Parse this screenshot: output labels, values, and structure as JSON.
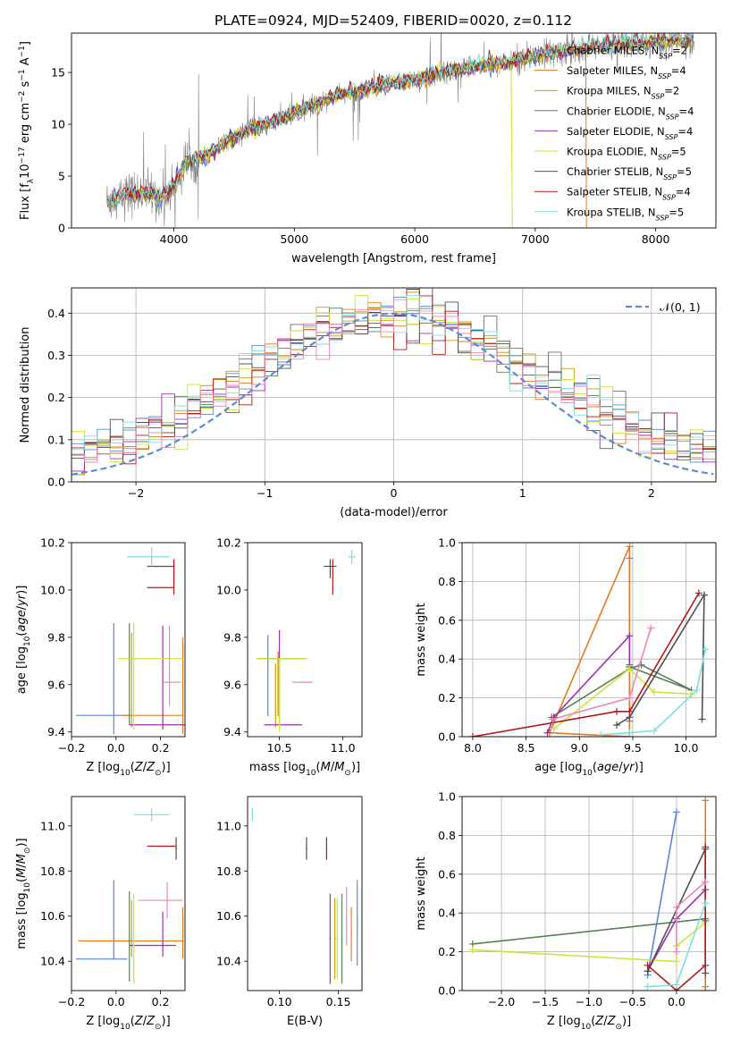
{
  "figure_title": "PLATE=0924, MJD=52409, FIBERID=0020, z=0.112",
  "colors": {
    "Chabrier MILES": "#5b86d6",
    "Salpeter MILES": "#e07b22",
    "Kroupa MILES": "#c8a000",
    "Chabrier ELODIE": "#5a7f5a",
    "Salpeter ELODIE": "#9b30b0",
    "Kroupa ELODIE": "#cde23a",
    "Chabrier STELIB": "#505050",
    "Salpeter STELIB": "#b21818",
    "Kroupa STELIB": "#7fdede",
    "data": "#808080",
    "pink": "#e887b8",
    "normal_curve": "#5b8bd6",
    "grid": "#b0b0b0"
  },
  "chart_data": [
    {
      "id": "spectrum",
      "type": "line",
      "xlabel": "wavelength [Angstrom, rest frame]",
      "ylabel": "Flux [f_λ10^-17 erg cm^-2 s^-1 A^-1]",
      "xlim": [
        3150,
        8500
      ],
      "ylim": [
        0,
        18.8
      ],
      "xticks": [
        4000,
        5000,
        6000,
        7000,
        8000
      ],
      "yticks": [
        0,
        5,
        10,
        15
      ],
      "grid": false,
      "legend_position": "right",
      "legend": [
        {
          "label": "Chabrier MILES, N_SSP=2",
          "color": "#5b86d6"
        },
        {
          "label": "Salpeter MILES, N_SSP=4",
          "color": "#e07b22"
        },
        {
          "label": "Kroupa MILES, N_SSP=2",
          "color": "#c8a000"
        },
        {
          "label": "Chabrier ELODIE, N_SSP=4",
          "color": "#5a7f5a"
        },
        {
          "label": "Salpeter ELODIE, N_SSP=4",
          "color": "#9b30b0"
        },
        {
          "label": "Kroupa ELODIE, N_SSP=5",
          "color": "#cde23a"
        },
        {
          "label": "Chabrier STELIB, N_SSP=5",
          "color": "#505050"
        },
        {
          "label": "Salpeter STELIB, N_SSP=4",
          "color": "#b21818"
        },
        {
          "label": "Kroupa STELIB, N_SSP=5",
          "color": "#7fdede"
        }
      ],
      "continuum_x": [
        3450,
        3600,
        3750,
        3900,
        4000,
        4100,
        4300,
        4500,
        4700,
        4900,
        5100,
        5300,
        5500,
        5700,
        5900,
        6100,
        6300,
        6500,
        6700,
        6900,
        7100,
        7300,
        7500,
        7700,
        7900,
        8100,
        8300
      ],
      "continuum_y": [
        2.6,
        3.2,
        3.5,
        2.9,
        4.0,
        6.3,
        7.2,
        8.8,
        9.8,
        10.6,
        11.6,
        12.6,
        13.1,
        13.7,
        14.2,
        14.5,
        15.2,
        15.6,
        15.9,
        16.3,
        16.8,
        17.2,
        17.5,
        17.7,
        17.8,
        18.0,
        18.1
      ]
    },
    {
      "id": "residuals",
      "type": "histogram",
      "xlabel": "(data-model)/error",
      "ylabel": "Normed distribution",
      "xlim": [
        -2.5,
        2.5
      ],
      "ylim": [
        0,
        0.46
      ],
      "xticks": [
        -2,
        -1,
        0,
        1,
        2
      ],
      "yticks": [
        0.0,
        0.1,
        0.2,
        0.3,
        0.4
      ],
      "grid": true,
      "legend_position": "top-right",
      "normal_curve_label": "𝒩(0, 1)",
      "bin_width": 0.1
    },
    {
      "id": "age-vs-Z",
      "type": "errorbar",
      "xlabel": "Z [log10(Z/Z⊙)]",
      "ylabel": "age  [log10(age/yr)]",
      "xlim": [
        -0.2,
        0.31
      ],
      "ylim": [
        9.38,
        10.2
      ],
      "xticks": [
        -0.2,
        0.0,
        0.2
      ],
      "yticks": [
        9.4,
        9.6,
        9.8,
        10.0,
        10.2
      ],
      "points": [
        {
          "model": "Chabrier MILES",
          "x": -0.01,
          "xerr": [
            0.17,
            0.07
          ],
          "y": 9.47,
          "yerr": [
            0.08,
            0.39
          ]
        },
        {
          "model": "Salpeter MILES",
          "x": 0.3,
          "xerr": [
            0.28,
            0.0
          ],
          "y": 9.47,
          "yerr": [
            0.08,
            0.33
          ]
        },
        {
          "model": "Kroupa MILES",
          "x": 0.07,
          "xerr": [
            0.0,
            0.0
          ],
          "y": 9.47,
          "yerr": [
            0.05,
            0.35
          ]
        },
        {
          "model": "Chabrier ELODIE",
          "x": 0.06,
          "xerr": [
            0.0,
            0.0
          ],
          "y": 9.71,
          "yerr": [
            0.28,
            0.15
          ]
        },
        {
          "model": "Salpeter ELODIE",
          "x": 0.21,
          "xerr": [
            0.15,
            0.1
          ],
          "y": 9.43,
          "yerr": [
            0.02,
            0.42
          ]
        },
        {
          "model": "Kroupa ELODIE",
          "x": 0.08,
          "xerr": [
            0.07,
            0.22
          ],
          "y": 9.71,
          "yerr": [
            0.3,
            0.15
          ]
        },
        {
          "model": "Chabrier STELIB",
          "x": 0.26,
          "xerr": [
            0.12,
            0.0
          ],
          "y": 10.1,
          "yerr": [
            0.04,
            0.03
          ]
        },
        {
          "model": "Salpeter STELIB",
          "x": 0.26,
          "xerr": [
            0.12,
            0.0
          ],
          "y": 10.01,
          "yerr": [
            0.03,
            0.12
          ]
        },
        {
          "model": "Kroupa STELIB",
          "x": 0.16,
          "xerr": [
            0.11,
            0.08
          ],
          "y": 10.14,
          "yerr": [
            0.04,
            0.04
          ]
        },
        {
          "model": "pink",
          "x": 0.24,
          "xerr": [
            0.03,
            0.05
          ],
          "y": 9.61,
          "yerr": [
            0.1,
            0.24
          ]
        }
      ]
    },
    {
      "id": "age-vs-mass",
      "type": "errorbar",
      "xlabel": "mass [log10(M/M⊙)]",
      "ylabel": "",
      "xlim": [
        10.25,
        11.15
      ],
      "ylim": [
        9.38,
        10.2
      ],
      "xticks": [
        10.5,
        11.0
      ],
      "yticks": [
        9.4,
        9.6,
        9.8,
        10.0,
        10.2
      ],
      "points": [
        {
          "model": "Chabrier MILES",
          "x": 10.41,
          "xerr": [
            0.0,
            0.0
          ],
          "y": 9.47,
          "yerr": [
            0.0,
            0.34
          ]
        },
        {
          "model": "Salpeter MILES",
          "x": 10.49,
          "xerr": [
            0.0,
            0.0
          ],
          "y": 9.47,
          "yerr": [
            0.0,
            0.27
          ]
        },
        {
          "model": "Kroupa MILES",
          "x": 10.47,
          "xerr": [
            0.0,
            0.0
          ],
          "y": 9.47,
          "yerr": [
            0.05,
            0.22
          ]
        },
        {
          "model": "Chabrier ELODIE",
          "x": 10.46,
          "xerr": [
            0.14,
            0.24
          ],
          "y": 9.71,
          "yerr": [
            0.0,
            0.0
          ]
        },
        {
          "model": "Salpeter ELODIE",
          "x": 10.5,
          "xerr": [
            0.12,
            0.18
          ],
          "y": 9.43,
          "yerr": [
            0.0,
            0.4
          ]
        },
        {
          "model": "Kroupa ELODIE",
          "x": 10.5,
          "xerr": [
            0.18,
            0.22
          ],
          "y": 9.71,
          "yerr": [
            0.31,
            0.0
          ]
        },
        {
          "model": "Chabrier STELIB",
          "x": 10.9,
          "xerr": [
            0.05,
            0.05
          ],
          "y": 10.1,
          "yerr": [
            0.05,
            0.03
          ]
        },
        {
          "model": "Salpeter STELIB",
          "x": 10.92,
          "xerr": [
            0.0,
            0.0
          ],
          "y": 10.01,
          "yerr": [
            0.03,
            0.12
          ]
        },
        {
          "model": "Kroupa STELIB",
          "x": 11.07,
          "xerr": [
            0.03,
            0.03
          ],
          "y": 10.14,
          "yerr": [
            0.03,
            0.03
          ]
        },
        {
          "model": "pink",
          "x": 10.68,
          "xerr": [
            0.08,
            0.08
          ],
          "y": 9.61,
          "yerr": [
            0.0,
            0.0
          ]
        }
      ]
    },
    {
      "id": "weight-vs-age",
      "type": "line",
      "xlabel": "age  [log10(age/yr)]",
      "ylabel": "mass weight",
      "xlim": [
        7.9,
        10.28
      ],
      "ylim": [
        0,
        1.0
      ],
      "xticks": [
        8.0,
        8.5,
        9.0,
        9.5,
        10.0
      ],
      "yticks": [
        0.0,
        0.2,
        0.4,
        0.6,
        0.8,
        1.0
      ],
      "grid": true,
      "series": [
        {
          "model": "Chabrier MILES",
          "x": [
            9.47,
            9.47
          ],
          "y": [
            0.92,
            0.08
          ]
        },
        {
          "model": "Salpeter MILES",
          "x": [
            8.72,
            9.47,
            9.47,
            8.72
          ],
          "y": [
            0.02,
            0.98,
            0.0,
            0.02
          ]
        },
        {
          "model": "Chabrier ELODIE",
          "x": [
            8.74,
            9.47,
            9.58,
            10.05,
            9.47
          ],
          "y": [
            0.1,
            0.35,
            0.37,
            0.24,
            0.36
          ]
        },
        {
          "model": "Salpeter ELODIE",
          "x": [
            8.7,
            8.76,
            9.47,
            9.47
          ],
          "y": [
            0.02,
            0.1,
            0.52,
            0.37
          ]
        },
        {
          "model": "Kroupa ELODIE",
          "x": [
            8.76,
            9.47,
            9.7,
            10.05
          ],
          "y": [
            0.04,
            0.35,
            0.23,
            0.22
          ]
        },
        {
          "model": "Chabrier STELIB",
          "x": [
            9.35,
            9.47,
            10.17,
            10.15
          ],
          "y": [
            0.06,
            0.1,
            0.73,
            0.09
          ]
        },
        {
          "model": "Salpeter STELIB",
          "x": [
            8.0,
            9.35,
            9.47,
            10.12
          ],
          "y": [
            0.0,
            0.13,
            0.13,
            0.74
          ]
        },
        {
          "model": "Kroupa STELIB",
          "x": [
            9.2,
            9.47,
            9.7,
            10.1,
            10.18
          ],
          "y": [
            0.01,
            0.02,
            0.03,
            0.24,
            0.45
          ]
        },
        {
          "model": "pink",
          "x": [
            8.75,
            9.47,
            9.67
          ],
          "y": [
            0.09,
            0.2,
            0.56
          ]
        }
      ]
    },
    {
      "id": "mass-vs-Z",
      "type": "errorbar",
      "xlabel": "Z [log10(Z/Z⊙)]",
      "ylabel": "mass [log10(M/M⊙)]",
      "xlim": [
        -0.2,
        0.31
      ],
      "ylim": [
        10.27,
        11.13
      ],
      "xticks": [
        -0.2,
        0.0,
        0.2
      ],
      "yticks": [
        10.4,
        10.6,
        10.8,
        11.0
      ],
      "points": [
        {
          "model": "Chabrier MILES",
          "x": -0.01,
          "xerr": [
            0.17,
            0.06
          ],
          "y": 10.41,
          "yerr": [
            0.0,
            0.35
          ]
        },
        {
          "model": "Salpeter MILES",
          "x": 0.3,
          "xerr": [
            0.47,
            0.0
          ],
          "y": 10.49,
          "yerr": [
            0.08,
            0.15
          ]
        },
        {
          "model": "Kroupa MILES",
          "x": 0.07,
          "xerr": [
            0.0,
            0.0
          ],
          "y": 10.47,
          "yerr": [
            0.05,
            0.2
          ]
        },
        {
          "model": "Chabrier ELODIE",
          "x": 0.06,
          "xerr": [
            0.0,
            0.0
          ],
          "y": 10.46,
          "yerr": [
            0.15,
            0.25
          ]
        },
        {
          "model": "Salpeter ELODIE",
          "x": 0.21,
          "xerr": [
            0.15,
            0.06
          ],
          "y": 10.47,
          "yerr": [
            0.05,
            0.15
          ]
        },
        {
          "model": "Kroupa ELODIE",
          "x": 0.08,
          "xerr": [
            0.0,
            0.0
          ],
          "y": 10.5,
          "yerr": [
            0.2,
            0.2
          ]
        },
        {
          "model": "Chabrier STELIB",
          "x": 0.27,
          "xerr": [
            0.0,
            0.0
          ],
          "y": 10.9,
          "yerr": [
            0.05,
            0.05
          ]
        },
        {
          "model": "Salpeter STELIB",
          "x": 0.25,
          "xerr": [
            0.11,
            0.02
          ],
          "y": 10.91,
          "yerr": [
            0.0,
            0.0
          ]
        },
        {
          "model": "Kroupa STELIB",
          "x": 0.16,
          "xerr": [
            0.08,
            0.08
          ],
          "y": 11.05,
          "yerr": [
            0.03,
            0.03
          ]
        },
        {
          "model": "pink",
          "x": 0.23,
          "xerr": [
            0.13,
            0.07
          ],
          "y": 10.67,
          "yerr": [
            0.08,
            0.08
          ]
        }
      ]
    },
    {
      "id": "mass-vs-EBV",
      "type": "errorbar",
      "xlabel": "E(B-V)",
      "ylabel": "",
      "xlim": [
        0.073,
        0.17
      ],
      "ylim": [
        10.27,
        11.13
      ],
      "xticks": [
        0.1,
        0.15
      ],
      "yticks": [
        10.4,
        10.6,
        10.8,
        11.0
      ],
      "points": [
        {
          "model": "Chabrier MILES",
          "x": 0.166,
          "xerr": [
            0.0,
            0.0
          ],
          "y": 10.57,
          "yerr": [
            0.19,
            0.19
          ]
        },
        {
          "model": "Salpeter MILES",
          "x": 0.161,
          "xerr": [
            0.0,
            0.0
          ],
          "y": 10.52,
          "yerr": [
            0.12,
            0.12
          ]
        },
        {
          "model": "Kroupa MILES",
          "x": 0.147,
          "xerr": [
            0.0,
            0.0
          ],
          "y": 10.5,
          "yerr": [
            0.18,
            0.18
          ]
        },
        {
          "model": "Chabrier ELODIE",
          "x": 0.153,
          "xerr": [
            0.0,
            0.0
          ],
          "y": 10.5,
          "yerr": [
            0.2,
            0.2
          ]
        },
        {
          "model": "Salpeter ELODIE",
          "x": 0.143,
          "xerr": [
            0.0,
            0.0
          ],
          "y": 10.5,
          "yerr": [
            0.2,
            0.2
          ]
        },
        {
          "model": "Kroupa ELODIE",
          "x": 0.149,
          "xerr": [
            0.0,
            0.0
          ],
          "y": 10.5,
          "yerr": [
            0.18,
            0.18
          ]
        },
        {
          "model": "Chabrier STELIB",
          "x": 0.123,
          "xerr": [
            0.0,
            0.0
          ],
          "y": 10.9,
          "yerr": [
            0.05,
            0.05
          ]
        },
        {
          "model": "Salpeter STELIB",
          "x": 0.14,
          "xerr": [
            0.0,
            0.0
          ],
          "y": 10.9,
          "yerr": [
            0.05,
            0.05
          ]
        },
        {
          "model": "Kroupa STELIB",
          "x": 0.077,
          "xerr": [
            0.0,
            0.0
          ],
          "y": 11.05,
          "yerr": [
            0.03,
            0.03
          ]
        },
        {
          "model": "pink",
          "x": 0.157,
          "xerr": [
            0.0,
            0.0
          ],
          "y": 10.6,
          "yerr": [
            0.13,
            0.13
          ]
        }
      ]
    },
    {
      "id": "weight-vs-Z",
      "type": "line",
      "xlabel": "Z [log10(Z/Z⊙)]",
      "ylabel": "mass weight",
      "xlim": [
        -2.45,
        0.45
      ],
      "ylim": [
        0,
        1.0
      ],
      "xticks": [
        -2.0,
        -1.5,
        -1.0,
        -0.5,
        0.0
      ],
      "yticks": [
        0.0,
        0.2,
        0.4,
        0.6,
        0.8,
        1.0
      ],
      "grid": true,
      "series": [
        {
          "model": "Chabrier MILES",
          "x": [
            -0.33,
            0.0
          ],
          "y": [
            0.08,
            0.92
          ]
        },
        {
          "model": "Salpeter MILES",
          "x": [
            0.33,
            0.33,
            0.33
          ],
          "y": [
            0.0,
            0.98,
            0.02
          ]
        },
        {
          "model": "Chabrier ELODIE",
          "x": [
            -2.33,
            0.33,
            0.33
          ],
          "y": [
            0.24,
            0.37,
            0.36
          ]
        },
        {
          "model": "Salpeter ELODIE",
          "x": [
            -0.33,
            0.0,
            0.33
          ],
          "y": [
            0.1,
            0.37,
            0.52
          ]
        },
        {
          "model": "Kroupa ELODIE",
          "x": [
            -2.33,
            0.0,
            0.0,
            0.33
          ],
          "y": [
            0.21,
            0.15,
            0.23,
            0.35
          ]
        },
        {
          "model": "Chabrier STELIB",
          "x": [
            -0.33,
            0.33,
            0.33
          ],
          "y": [
            0.1,
            0.73,
            0.09
          ]
        },
        {
          "model": "Salpeter STELIB",
          "x": [
            -0.33,
            0.0,
            0.33,
            0.33
          ],
          "y": [
            0.13,
            0.0,
            0.13,
            0.74
          ]
        },
        {
          "model": "Kroupa STELIB",
          "x": [
            -0.33,
            0.0,
            0.33
          ],
          "y": [
            0.02,
            0.03,
            0.45
          ]
        },
        {
          "model": "pink",
          "x": [
            0.0,
            0.0,
            0.33
          ],
          "y": [
            0.2,
            0.43,
            0.56
          ]
        }
      ]
    }
  ]
}
